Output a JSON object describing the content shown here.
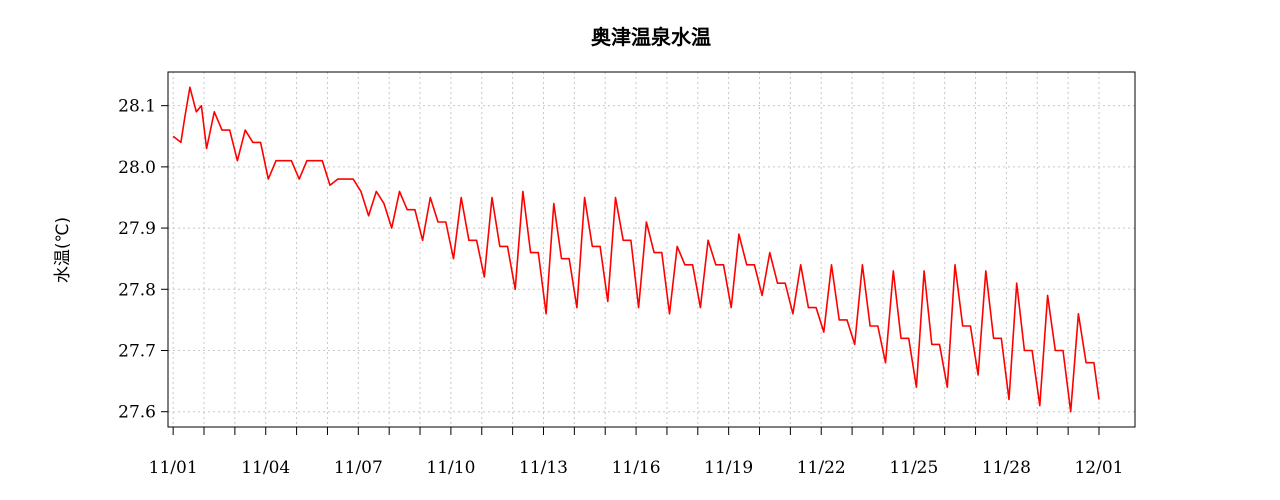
{
  "chart_data": {
    "type": "line",
    "title": "奥津温泉水温",
    "xlabel": "",
    "ylabel": "水温(℃)",
    "xlim": [
      "2020-10-31T20:00",
      "2020-12-02T04:00"
    ],
    "ylim": [
      27.575,
      28.155
    ],
    "y_ticks": [
      27.6,
      27.7,
      27.8,
      27.9,
      28.0,
      28.1
    ],
    "x_tick_labels": [
      "11/01",
      "11/04",
      "11/07",
      "11/10",
      "11/13",
      "11/16",
      "11/19",
      "11/22",
      "11/25",
      "11/28",
      "12/01"
    ],
    "x_tick_dates": [
      "2020-11-01",
      "2020-11-04",
      "2020-11-07",
      "2020-11-10",
      "2020-11-13",
      "2020-11-16",
      "2020-11-19",
      "2020-11-22",
      "2020-11-25",
      "2020-11-28",
      "2020-12-01"
    ],
    "x_minor_tick_dates": [
      "2020-11-01",
      "2020-11-02",
      "2020-11-03",
      "2020-11-04",
      "2020-11-05",
      "2020-11-06",
      "2020-11-07",
      "2020-11-08",
      "2020-11-09",
      "2020-11-10",
      "2020-11-11",
      "2020-11-12",
      "2020-11-13",
      "2020-11-14",
      "2020-11-15",
      "2020-11-16",
      "2020-11-17",
      "2020-11-18",
      "2020-11-19",
      "2020-11-20",
      "2020-11-21",
      "2020-11-22",
      "2020-11-23",
      "2020-11-24",
      "2020-11-25",
      "2020-11-26",
      "2020-11-27",
      "2020-11-28",
      "2020-11-29",
      "2020-11-30",
      "2020-12-01"
    ],
    "grid": true,
    "grid_style": "dotted",
    "legend": "none",
    "series_color": "#ff0000",
    "series": [
      {
        "x": [
          "2020-11-01T00:00",
          "2020-11-01T06:00",
          "2020-11-01T09:00",
          "2020-11-01T13:00",
          "2020-11-01T18:00",
          "2020-11-01T22:00",
          "2020-11-02T02:00",
          "2020-11-02T08:00",
          "2020-11-02T14:00",
          "2020-11-02T20:00",
          "2020-11-03T02:00",
          "2020-11-03T08:00",
          "2020-11-03T14:00",
          "2020-11-03T20:00",
          "2020-11-04T02:00",
          "2020-11-04T08:00",
          "2020-11-04T14:00",
          "2020-11-04T20:00",
          "2020-11-05T02:00",
          "2020-11-05T08:00",
          "2020-11-05T14:00",
          "2020-11-05T20:00",
          "2020-11-06T02:00",
          "2020-11-06T08:00",
          "2020-11-06T14:00",
          "2020-11-06T20:00",
          "2020-11-07T02:00",
          "2020-11-07T08:00",
          "2020-11-07T14:00",
          "2020-11-07T20:00",
          "2020-11-08T02:00",
          "2020-11-08T08:00",
          "2020-11-08T14:00",
          "2020-11-08T20:00",
          "2020-11-09T02:00",
          "2020-11-09T08:00",
          "2020-11-09T14:00",
          "2020-11-09T20:00",
          "2020-11-10T02:00",
          "2020-11-10T08:00",
          "2020-11-10T14:00",
          "2020-11-10T20:00",
          "2020-11-11T02:00",
          "2020-11-11T08:00",
          "2020-11-11T14:00",
          "2020-11-11T20:00",
          "2020-11-12T02:00",
          "2020-11-12T08:00",
          "2020-11-12T14:00",
          "2020-11-12T20:00",
          "2020-11-13T02:00",
          "2020-11-13T08:00",
          "2020-11-13T14:00",
          "2020-11-13T20:00",
          "2020-11-14T02:00",
          "2020-11-14T08:00",
          "2020-11-14T14:00",
          "2020-11-14T20:00",
          "2020-11-15T02:00",
          "2020-11-15T08:00",
          "2020-11-15T14:00",
          "2020-11-15T20:00",
          "2020-11-16T02:00",
          "2020-11-16T08:00",
          "2020-11-16T14:00",
          "2020-11-16T20:00",
          "2020-11-17T02:00",
          "2020-11-17T08:00",
          "2020-11-17T14:00",
          "2020-11-17T20:00",
          "2020-11-18T02:00",
          "2020-11-18T08:00",
          "2020-11-18T14:00",
          "2020-11-18T20:00",
          "2020-11-19T02:00",
          "2020-11-19T08:00",
          "2020-11-19T14:00",
          "2020-11-19T20:00",
          "2020-11-20T02:00",
          "2020-11-20T08:00",
          "2020-11-20T14:00",
          "2020-11-20T20:00",
          "2020-11-21T02:00",
          "2020-11-21T08:00",
          "2020-11-21T14:00",
          "2020-11-21T20:00",
          "2020-11-22T02:00",
          "2020-11-22T08:00",
          "2020-11-22T14:00",
          "2020-11-22T20:00",
          "2020-11-23T02:00",
          "2020-11-23T08:00",
          "2020-11-23T14:00",
          "2020-11-23T20:00",
          "2020-11-24T02:00",
          "2020-11-24T08:00",
          "2020-11-24T14:00",
          "2020-11-24T20:00",
          "2020-11-25T02:00",
          "2020-11-25T08:00",
          "2020-11-25T14:00",
          "2020-11-25T20:00",
          "2020-11-26T02:00",
          "2020-11-26T08:00",
          "2020-11-26T14:00",
          "2020-11-26T20:00",
          "2020-11-27T02:00",
          "2020-11-27T08:00",
          "2020-11-27T14:00",
          "2020-11-27T20:00",
          "2020-11-28T02:00",
          "2020-11-28T08:00",
          "2020-11-28T14:00",
          "2020-11-28T20:00",
          "2020-11-29T02:00",
          "2020-11-29T08:00",
          "2020-11-29T14:00",
          "2020-11-29T20:00",
          "2020-11-30T02:00",
          "2020-11-30T08:00",
          "2020-11-30T14:00",
          "2020-11-30T20:00",
          "2020-12-01T00:00"
        ],
        "y": [
          28.05,
          28.04,
          28.08,
          28.13,
          28.09,
          28.1,
          28.03,
          28.09,
          28.06,
          28.06,
          28.01,
          28.06,
          28.04,
          28.04,
          27.98,
          28.01,
          28.01,
          28.01,
          27.98,
          28.01,
          28.01,
          28.01,
          27.97,
          27.98,
          27.98,
          27.98,
          27.96,
          27.92,
          27.96,
          27.94,
          27.9,
          27.96,
          27.93,
          27.93,
          27.88,
          27.95,
          27.91,
          27.91,
          27.85,
          27.95,
          27.88,
          27.88,
          27.82,
          27.95,
          27.87,
          27.87,
          27.8,
          27.96,
          27.86,
          27.86,
          27.76,
          27.94,
          27.85,
          27.85,
          27.77,
          27.95,
          27.87,
          27.87,
          27.78,
          27.95,
          27.88,
          27.88,
          27.77,
          27.91,
          27.86,
          27.86,
          27.76,
          27.87,
          27.84,
          27.84,
          27.77,
          27.88,
          27.84,
          27.84,
          27.77,
          27.89,
          27.84,
          27.84,
          27.79,
          27.86,
          27.81,
          27.81,
          27.76,
          27.84,
          27.77,
          27.77,
          27.73,
          27.84,
          27.75,
          27.75,
          27.71,
          27.84,
          27.74,
          27.74,
          27.68,
          27.83,
          27.72,
          27.72,
          27.64,
          27.83,
          27.71,
          27.71,
          27.64,
          27.84,
          27.74,
          27.74,
          27.66,
          27.83,
          27.72,
          27.72,
          27.62,
          27.81,
          27.7,
          27.7,
          27.61,
          27.79,
          27.7,
          27.7,
          27.6,
          27.76,
          27.68,
          27.68,
          27.62
        ]
      }
    ]
  }
}
